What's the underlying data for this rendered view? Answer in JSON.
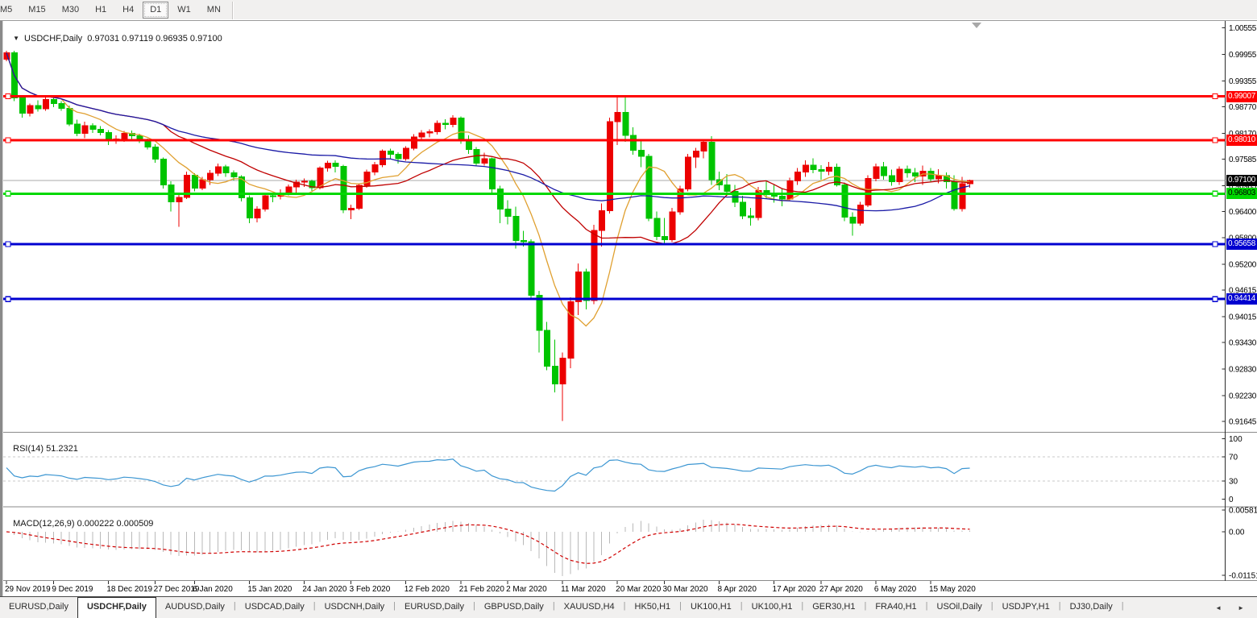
{
  "toolbar": {
    "timeframes": [
      "M5",
      "M15",
      "M30",
      "H1",
      "H4",
      "D1",
      "W1",
      "MN"
    ],
    "active_timeframe": "D1"
  },
  "chart_header": {
    "dropdown_icon": "▼",
    "symbol": "USDCHF,Daily",
    "ohlc": "0.97031 0.97119 0.96935 0.97100"
  },
  "chart_data": {
    "type": "candlestick",
    "symbol": "USDCHF",
    "timeframe": "Daily",
    "bull_color": "#ec0000",
    "bear_color": "#00c400",
    "candles": [
      [
        0.9985,
        1.0004,
        0.998,
        0.9999
      ],
      [
        0.9999,
        1.0004,
        0.989,
        0.9897
      ],
      [
        0.9897,
        0.9903,
        0.9852,
        0.9862
      ],
      [
        0.9862,
        0.9884,
        0.9855,
        0.988
      ],
      [
        0.988,
        0.9892,
        0.9866,
        0.9872
      ],
      [
        0.9872,
        0.99,
        0.9868,
        0.9893
      ],
      [
        0.9893,
        0.9898,
        0.9876,
        0.9884
      ],
      [
        0.9884,
        0.989,
        0.9868,
        0.9873
      ],
      [
        0.9873,
        0.988,
        0.9833,
        0.9838
      ],
      [
        0.9838,
        0.9848,
        0.981,
        0.9817
      ],
      [
        0.9817,
        0.9843,
        0.9806,
        0.9834
      ],
      [
        0.9834,
        0.984,
        0.9818,
        0.9826
      ],
      [
        0.9826,
        0.9833,
        0.9812,
        0.9819
      ],
      [
        0.9819,
        0.9824,
        0.979,
        0.9799
      ],
      [
        0.9799,
        0.9812,
        0.9793,
        0.9804
      ],
      [
        0.9804,
        0.9822,
        0.9798,
        0.9817
      ],
      [
        0.9817,
        0.9823,
        0.9804,
        0.9811
      ],
      [
        0.9811,
        0.9816,
        0.9795,
        0.9799
      ],
      [
        0.9799,
        0.9805,
        0.978,
        0.9786
      ],
      [
        0.9786,
        0.9792,
        0.975,
        0.9758
      ],
      [
        0.9758,
        0.9762,
        0.9692,
        0.97
      ],
      [
        0.97,
        0.9708,
        0.964,
        0.9662
      ],
      [
        0.9662,
        0.968,
        0.9605,
        0.9672
      ],
      [
        0.9672,
        0.973,
        0.9668,
        0.9722
      ],
      [
        0.9722,
        0.9726,
        0.9685,
        0.9693
      ],
      [
        0.9693,
        0.9718,
        0.9688,
        0.9712
      ],
      [
        0.9712,
        0.9734,
        0.97,
        0.9726
      ],
      [
        0.9726,
        0.9748,
        0.972,
        0.9741
      ],
      [
        0.9741,
        0.9746,
        0.9718,
        0.9727
      ],
      [
        0.9727,
        0.9733,
        0.971,
        0.9718
      ],
      [
        0.9718,
        0.9722,
        0.9663,
        0.9671
      ],
      [
        0.9671,
        0.9676,
        0.9613,
        0.9625
      ],
      [
        0.9625,
        0.9652,
        0.9615,
        0.9645
      ],
      [
        0.9645,
        0.9682,
        0.964,
        0.9675
      ],
      [
        0.9675,
        0.9681,
        0.9661,
        0.9674
      ],
      [
        0.9674,
        0.969,
        0.9667,
        0.9682
      ],
      [
        0.9682,
        0.9701,
        0.9676,
        0.9695
      ],
      [
        0.9695,
        0.9712,
        0.968,
        0.9706
      ],
      [
        0.9706,
        0.9715,
        0.9695,
        0.9708
      ],
      [
        0.9708,
        0.9712,
        0.9686,
        0.9694
      ],
      [
        0.9694,
        0.9742,
        0.969,
        0.9738
      ],
      [
        0.9738,
        0.9755,
        0.973,
        0.9749
      ],
      [
        0.9749,
        0.9756,
        0.9728,
        0.9742
      ],
      [
        0.9742,
        0.9746,
        0.9636,
        0.9643
      ],
      [
        0.9643,
        0.9655,
        0.9622,
        0.9647
      ],
      [
        0.9647,
        0.9703,
        0.9643,
        0.9699
      ],
      [
        0.9699,
        0.9735,
        0.9694,
        0.9729
      ],
      [
        0.9729,
        0.9752,
        0.9722,
        0.9746
      ],
      [
        0.9746,
        0.978,
        0.974,
        0.9777
      ],
      [
        0.9777,
        0.9782,
        0.9758,
        0.9769
      ],
      [
        0.9769,
        0.9774,
        0.9748,
        0.9759
      ],
      [
        0.9759,
        0.9788,
        0.9755,
        0.9783
      ],
      [
        0.9783,
        0.9815,
        0.9778,
        0.9809
      ],
      [
        0.9809,
        0.9824,
        0.98,
        0.9818
      ],
      [
        0.9818,
        0.9826,
        0.9808,
        0.982
      ],
      [
        0.982,
        0.9846,
        0.9814,
        0.984
      ],
      [
        0.984,
        0.9849,
        0.9826,
        0.9837
      ],
      [
        0.9837,
        0.9858,
        0.983,
        0.9851
      ],
      [
        0.9851,
        0.9855,
        0.9793,
        0.9801
      ],
      [
        0.9801,
        0.9812,
        0.977,
        0.978
      ],
      [
        0.978,
        0.9786,
        0.9742,
        0.9749
      ],
      [
        0.9749,
        0.9773,
        0.9744,
        0.9759
      ],
      [
        0.9759,
        0.9762,
        0.9683,
        0.9691
      ],
      [
        0.9691,
        0.9698,
        0.9613,
        0.9645
      ],
      [
        0.9645,
        0.9665,
        0.9611,
        0.9629
      ],
      [
        0.9629,
        0.9651,
        0.9556,
        0.9574
      ],
      [
        0.9574,
        0.9596,
        0.956,
        0.9571
      ],
      [
        0.9571,
        0.9577,
        0.9442,
        0.945
      ],
      [
        0.945,
        0.946,
        0.932,
        0.9371
      ],
      [
        0.9371,
        0.939,
        0.928,
        0.9289
      ],
      [
        0.9289,
        0.935,
        0.923,
        0.9249
      ],
      [
        0.9249,
        0.932,
        0.9165,
        0.9308
      ],
      [
        0.9308,
        0.9445,
        0.9285,
        0.9435
      ],
      [
        0.9435,
        0.9522,
        0.9405,
        0.9503
      ],
      [
        0.9503,
        0.951,
        0.9418,
        0.9438
      ],
      [
        0.9438,
        0.961,
        0.943,
        0.9597
      ],
      [
        0.9597,
        0.9658,
        0.956,
        0.9642
      ],
      [
        0.9642,
        0.9852,
        0.9635,
        0.9843
      ],
      [
        0.9843,
        0.9899,
        0.979,
        0.9864
      ],
      [
        0.9864,
        0.9901,
        0.9798,
        0.9812
      ],
      [
        0.9812,
        0.983,
        0.9768,
        0.9778
      ],
      [
        0.9778,
        0.98,
        0.974,
        0.9765
      ],
      [
        0.9765,
        0.977,
        0.9618,
        0.9624
      ],
      [
        0.9624,
        0.964,
        0.9575,
        0.9583
      ],
      [
        0.9583,
        0.9625,
        0.9568,
        0.9576
      ],
      [
        0.9576,
        0.9648,
        0.957,
        0.9639
      ],
      [
        0.9639,
        0.9698,
        0.9632,
        0.9691
      ],
      [
        0.9691,
        0.977,
        0.9685,
        0.9763
      ],
      [
        0.9763,
        0.9784,
        0.9738,
        0.9777
      ],
      [
        0.9777,
        0.9802,
        0.976,
        0.9797
      ],
      [
        0.9797,
        0.981,
        0.97,
        0.9712
      ],
      [
        0.9712,
        0.973,
        0.9688,
        0.97
      ],
      [
        0.97,
        0.9725,
        0.9678,
        0.9685
      ],
      [
        0.9685,
        0.97,
        0.965,
        0.9661
      ],
      [
        0.9661,
        0.9675,
        0.9622,
        0.963
      ],
      [
        0.963,
        0.9648,
        0.9608,
        0.9626
      ],
      [
        0.9626,
        0.9695,
        0.962,
        0.9687
      ],
      [
        0.9687,
        0.971,
        0.967,
        0.968
      ],
      [
        0.968,
        0.97,
        0.966,
        0.9674
      ],
      [
        0.9674,
        0.9692,
        0.9652,
        0.9668
      ],
      [
        0.9668,
        0.9716,
        0.9663,
        0.9709
      ],
      [
        0.9709,
        0.9738,
        0.97,
        0.9729
      ],
      [
        0.9729,
        0.9756,
        0.9718,
        0.9745
      ],
      [
        0.9745,
        0.976,
        0.9726,
        0.9735
      ],
      [
        0.9735,
        0.9745,
        0.9712,
        0.9731
      ],
      [
        0.9731,
        0.9752,
        0.9722,
        0.974
      ],
      [
        0.974,
        0.9748,
        0.9696,
        0.97
      ],
      [
        0.97,
        0.9705,
        0.9618,
        0.9627
      ],
      [
        0.9627,
        0.9638,
        0.9585,
        0.9613
      ],
      [
        0.9613,
        0.9662,
        0.9608,
        0.9654
      ],
      [
        0.9654,
        0.9722,
        0.965,
        0.9715
      ],
      [
        0.9715,
        0.9748,
        0.9708,
        0.9741
      ],
      [
        0.9741,
        0.9752,
        0.9712,
        0.9721
      ],
      [
        0.9721,
        0.9735,
        0.9698,
        0.9707
      ],
      [
        0.9707,
        0.9742,
        0.97,
        0.9736
      ],
      [
        0.9736,
        0.9744,
        0.9716,
        0.9727
      ],
      [
        0.9727,
        0.9738,
        0.9706,
        0.972
      ],
      [
        0.972,
        0.9744,
        0.97,
        0.9731
      ],
      [
        0.9731,
        0.9738,
        0.9706,
        0.9714
      ],
      [
        0.9714,
        0.9736,
        0.9704,
        0.9721
      ],
      [
        0.9721,
        0.9728,
        0.9692,
        0.9707
      ],
      [
        0.9707,
        0.9722,
        0.9642,
        0.9646
      ],
      [
        0.9646,
        0.9718,
        0.964,
        0.9703
      ],
      [
        0.97031,
        0.97119,
        0.96935,
        0.971
      ]
    ],
    "moving_averages": [
      {
        "period": 8,
        "color": "#e0a030"
      },
      {
        "period": 21,
        "color": "#c00000"
      },
      {
        "period": 50,
        "color": "#1a1aa6"
      }
    ],
    "horizontal_lines": [
      {
        "label": "0.99007",
        "value": 0.99007,
        "color": "#ff0000",
        "badge_text_color": "#ffffff"
      },
      {
        "label": "0.98010",
        "value": 0.9801,
        "color": "#ff0000",
        "badge_text_color": "#ffffff"
      },
      {
        "label": "0.96803",
        "value": 0.96803,
        "color": "#00d800",
        "badge_text_color": "#000000"
      },
      {
        "label": "0.95658",
        "value": 0.95658,
        "color": "#0000d0",
        "badge_text_color": "#ffffff"
      },
      {
        "label": "0.94414",
        "value": 0.94414,
        "color": "#0000d0",
        "badge_text_color": "#ffffff"
      }
    ],
    "current_price": {
      "label": "0.97100",
      "value": 0.971,
      "line_color": "#aaaaaa",
      "badge_bg": "#000000",
      "badge_text_color": "#ffffff"
    },
    "price_axis_ticks": [
      "1.00555",
      "0.99955",
      "0.99355",
      "0.98770",
      "0.98170",
      "0.97585",
      "0.96985",
      "0.96400",
      "0.95800",
      "0.95200",
      "0.94615",
      "0.94015",
      "0.93430",
      "0.92830",
      "0.92230",
      "0.91645"
    ],
    "date_ticks": [
      {
        "index": 0,
        "label": "29 Nov 2019"
      },
      {
        "index": 6,
        "label": "9 Dec 2019"
      },
      {
        "index": 13,
        "label": "18 Dec 2019"
      },
      {
        "index": 19,
        "label": "27 Dec 2019"
      },
      {
        "index": 24,
        "label": "6 Jan 2020"
      },
      {
        "index": 31,
        "label": "15 Jan 2020"
      },
      {
        "index": 38,
        "label": "24 Jan 2020"
      },
      {
        "index": 44,
        "label": "3 Feb 2020"
      },
      {
        "index": 51,
        "label": "12 Feb 2020"
      },
      {
        "index": 58,
        "label": "21 Feb 2020"
      },
      {
        "index": 64,
        "label": "2 Mar 2020"
      },
      {
        "index": 71,
        "label": "11 Mar 2020"
      },
      {
        "index": 78,
        "label": "20 Mar 2020"
      },
      {
        "index": 84,
        "label": "30 Mar 2020"
      },
      {
        "index": 91,
        "label": "8 Apr 2020"
      },
      {
        "index": 98,
        "label": "17 Apr 2020"
      },
      {
        "index": 104,
        "label": "27 Apr 2020"
      },
      {
        "index": 111,
        "label": "6 May 2020"
      },
      {
        "index": 118,
        "label": "15 May 2020"
      }
    ],
    "rsi": {
      "label": "RSI(14)",
      "value_text": "51.2321",
      "period": 14,
      "color": "#3c96d2",
      "axis_ticks": [
        "100",
        "70",
        "30",
        "0"
      ],
      "dashed_levels": [
        70,
        30
      ],
      "level_color": "#c8c8c8"
    },
    "macd": {
      "label": "MACD(12,26,9)",
      "value_text": "0.000222 0.000509",
      "fast": 12,
      "slow": 26,
      "signal_period": 9,
      "histogram_color": "#b9b9b9",
      "signal_color": "#d00000",
      "axis_ticks": [
        {
          "label": "0.005818",
          "value": 0.005818
        },
        {
          "label": "0.00",
          "value": 0.0
        },
        {
          "label": "-0.011515",
          "value": -0.011515
        }
      ]
    }
  },
  "bottom_tabs": {
    "labels": [
      "EURUSD,Daily",
      "USDCHF,Daily",
      "AUDUSD,Daily",
      "USDCAD,Daily",
      "USDCNH,Daily",
      "EURUSD,Daily",
      "GBPUSD,Daily",
      "XAUUSD,H4",
      "HK50,H1",
      "UK100,H1",
      "UK100,H1",
      "GER30,H1",
      "FRA40,H1",
      "USOil,Daily",
      "USDJPY,H1",
      "DJ30,Daily"
    ],
    "active_index": 1,
    "scroll_left_icon": "◄",
    "scroll_right_icon": "►"
  }
}
